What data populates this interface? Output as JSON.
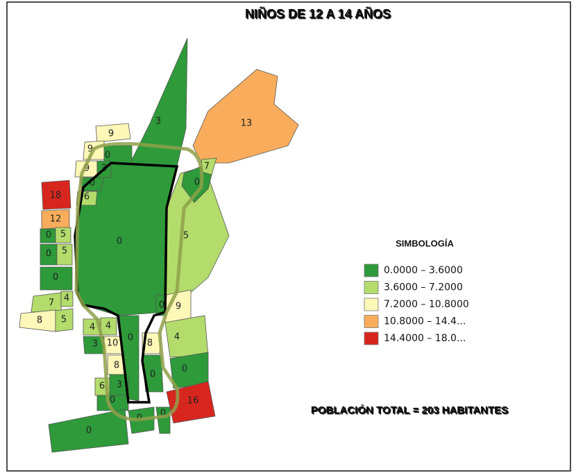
{
  "title": "NIÑOS DE 12 A 14 AÑOS",
  "legend": {
    "title": "SIMBOLOGÍA",
    "items": [
      {
        "label": "0.0000 – 3.6000",
        "color": "#2e9a3a"
      },
      {
        "label": "3.6000 – 7.2000",
        "color": "#b3dc6c"
      },
      {
        "label": "7.2000 – 10.8000",
        "color": "#fdf7b8"
      },
      {
        "label": "10.8000 – 14.4...",
        "color": "#f9ad5c"
      },
      {
        "label": "14.4000 – 18.0...",
        "color": "#d7261e"
      }
    ]
  },
  "total": "POBLACIÓN TOTAL =  203 HABITANTES",
  "blocks": [
    {
      "value": 0,
      "color": "#2e9a3a"
    },
    {
      "value": 3,
      "color": "#2e9a3a"
    },
    {
      "value": 13,
      "color": "#f9ad5c"
    },
    {
      "value": 5,
      "color": "#b3dc6c"
    },
    {
      "value": 0,
      "color": "#2e9a3a"
    },
    {
      "value": 7,
      "color": "#b3dc6c"
    },
    {
      "value": 9,
      "color": "#fdf7b8"
    },
    {
      "value": 9,
      "color": "#fdf7b8"
    },
    {
      "value": 0,
      "color": "#2e9a3a"
    },
    {
      "value": 9,
      "color": "#fdf7b8"
    },
    {
      "value": 3,
      "color": "#2e9a3a"
    },
    {
      "value": 0,
      "color": "#2e9a3a"
    },
    {
      "value": 18,
      "color": "#d7261e"
    },
    {
      "value": 6,
      "color": "#b3dc6c"
    },
    {
      "value": 12,
      "color": "#f9ad5c"
    },
    {
      "value": 0,
      "color": "#2e9a3a"
    },
    {
      "value": 5,
      "color": "#b3dc6c"
    },
    {
      "value": 0,
      "color": "#2e9a3a"
    },
    {
      "value": 5,
      "color": "#b3dc6c"
    },
    {
      "value": 0,
      "color": "#2e9a3a"
    },
    {
      "value": 7,
      "color": "#b3dc6c"
    },
    {
      "value": 4,
      "color": "#b3dc6c"
    },
    {
      "value": 8,
      "color": "#fdf7b8"
    },
    {
      "value": 5,
      "color": "#b3dc6c"
    },
    {
      "value": 4,
      "color": "#b3dc6c"
    },
    {
      "value": 4,
      "color": "#b3dc6c"
    },
    {
      "value": 3,
      "color": "#2e9a3a"
    },
    {
      "value": 10,
      "color": "#fdf7b8"
    },
    {
      "value": 8,
      "color": "#fdf7b8"
    },
    {
      "value": 0,
      "color": "#2e9a3a"
    },
    {
      "value": 6,
      "color": "#b3dc6c"
    },
    {
      "value": 3,
      "color": "#2e9a3a"
    },
    {
      "value": 0,
      "color": "#2e9a3a"
    },
    {
      "value": 8,
      "color": "#fdf7b8"
    },
    {
      "value": 0,
      "color": "#2e9a3a"
    },
    {
      "value": 0,
      "color": "#2e9a3a"
    },
    {
      "value": 9,
      "color": "#fdf7b8"
    },
    {
      "value": 4,
      "color": "#b3dc6c"
    },
    {
      "value": 0,
      "color": "#2e9a3a"
    },
    {
      "value": 16,
      "color": "#d7261e"
    },
    {
      "value": 0,
      "color": "#2e9a3a"
    },
    {
      "value": 0,
      "color": "#2e9a3a"
    },
    {
      "value": 0,
      "color": "#2e9a3a"
    }
  ]
}
